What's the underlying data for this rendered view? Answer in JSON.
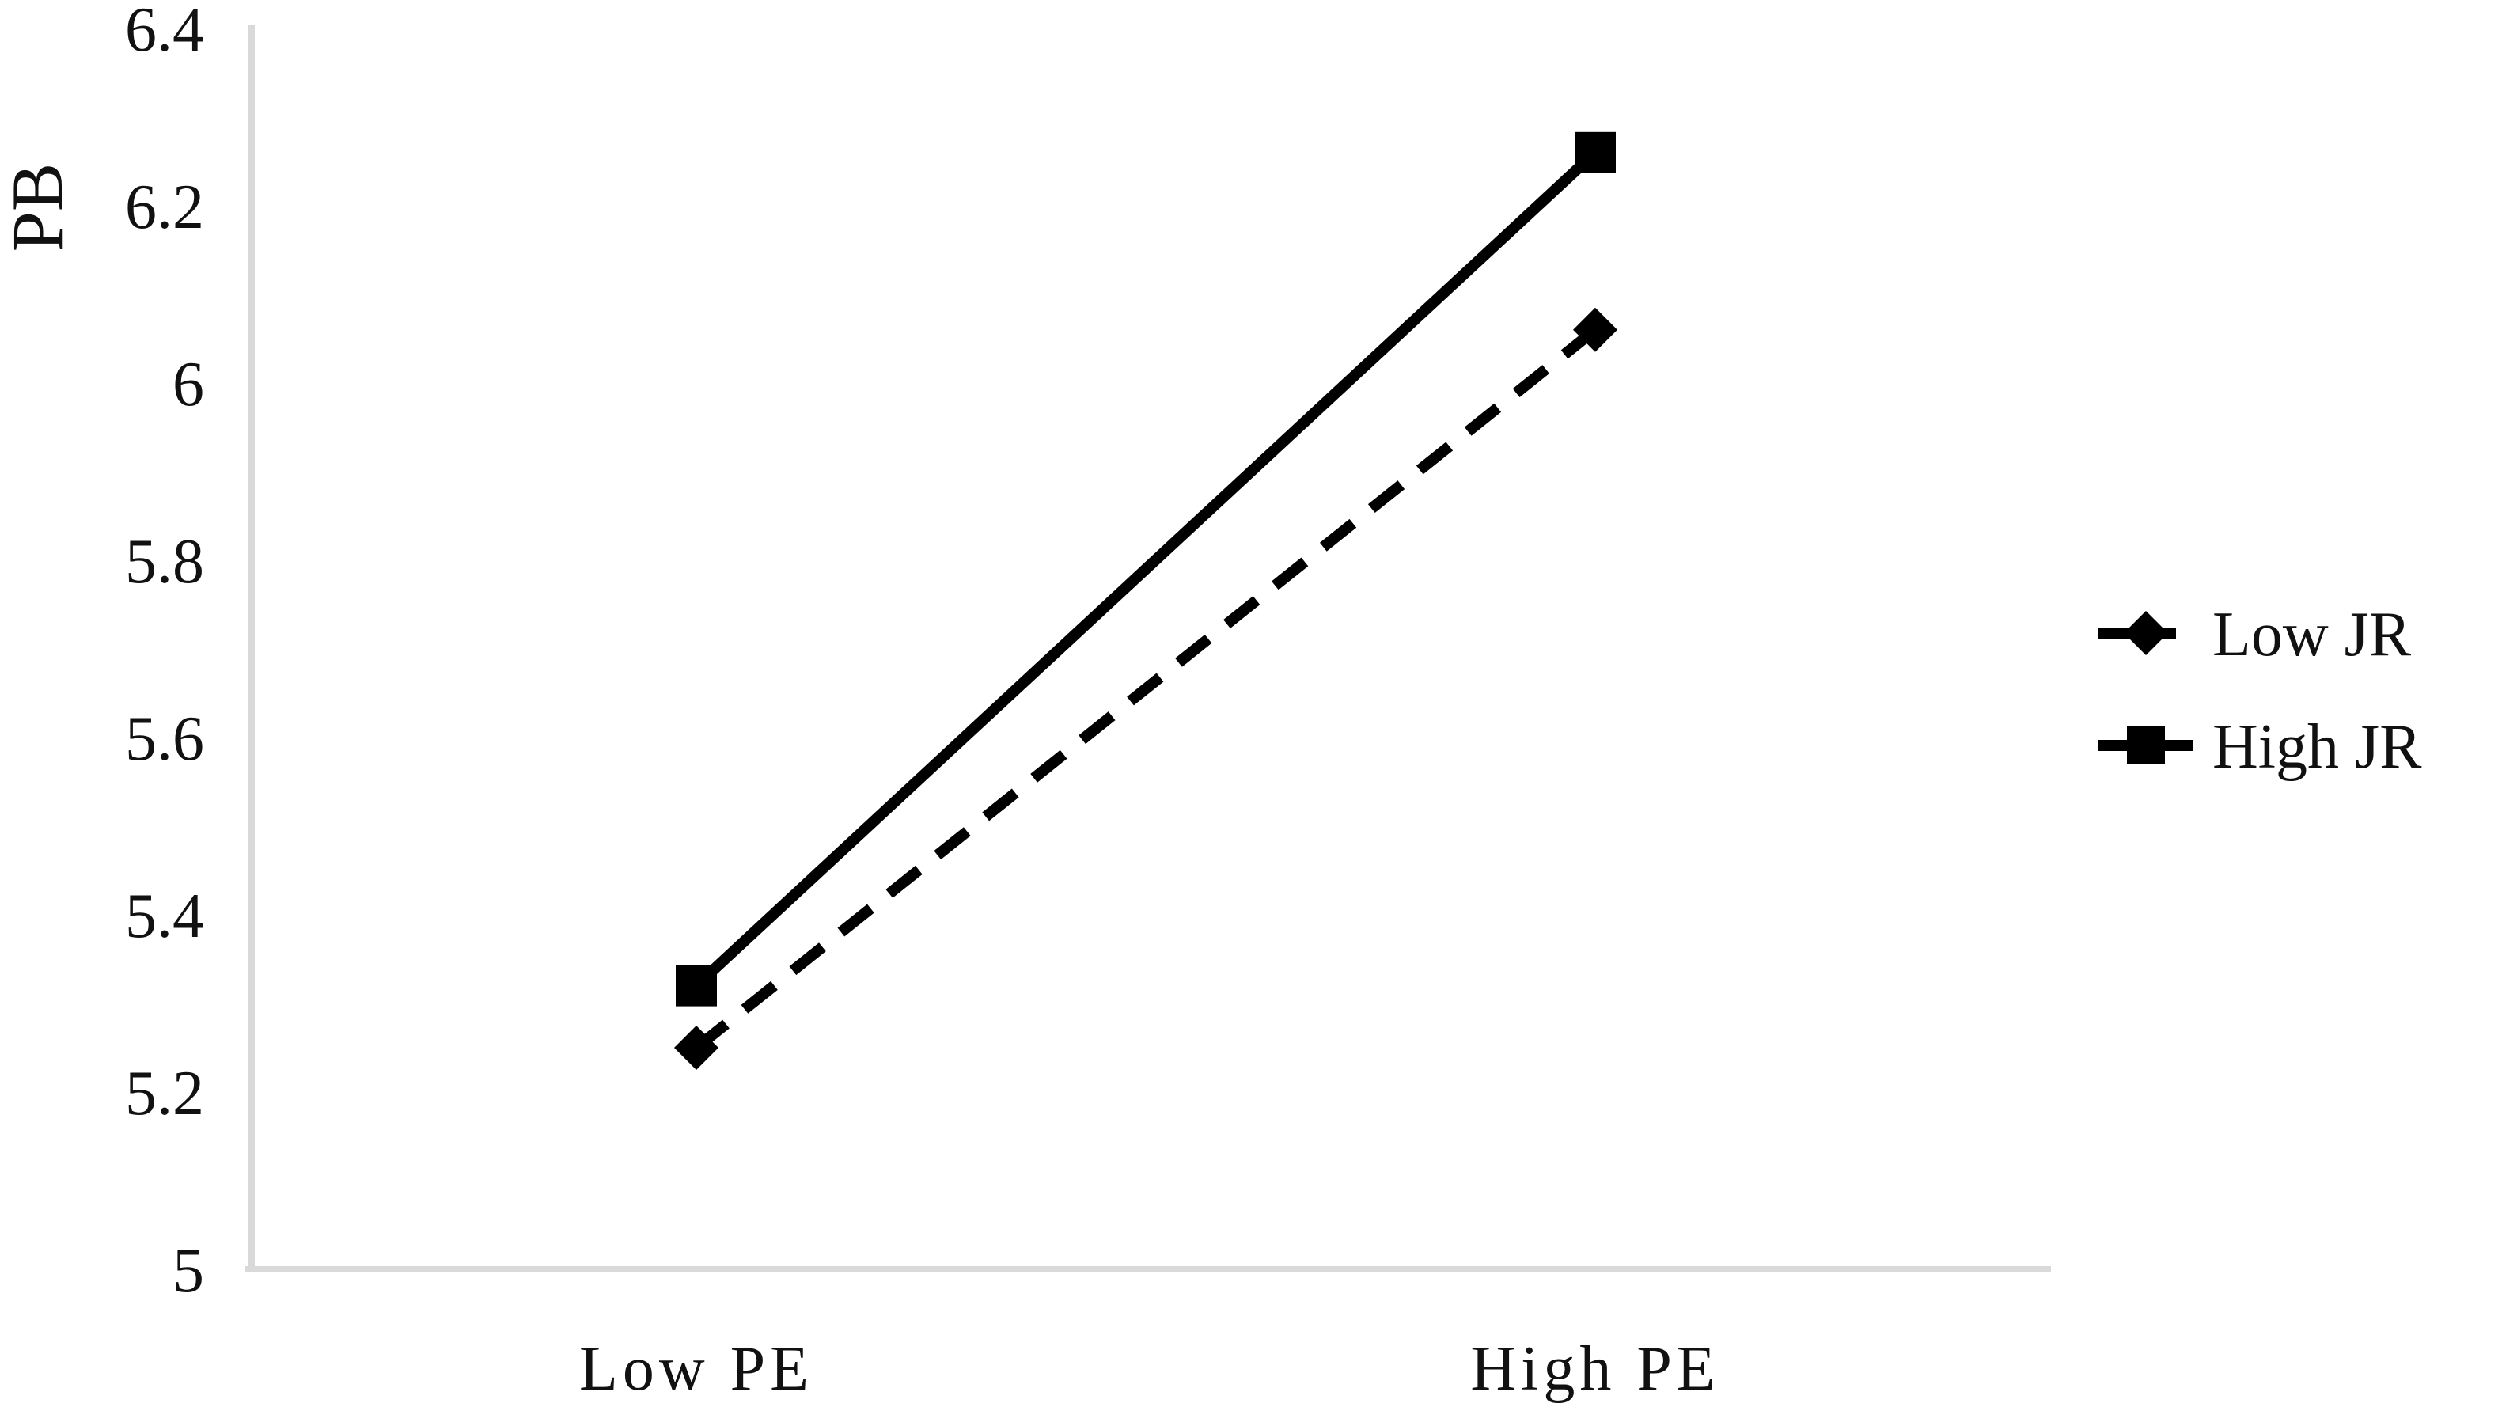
{
  "chart_data": {
    "type": "line",
    "ylabel": "PB",
    "xlabel": "",
    "title": "",
    "categories": [
      "Low PE",
      "High PE"
    ],
    "ylim": [
      5,
      6.4
    ],
    "yticks": [
      "5",
      "5.2",
      "5.4",
      "5.6",
      "5.8",
      "6",
      "6.2",
      "6.4"
    ],
    "grid": false,
    "legend_position": "right",
    "series": [
      {
        "name": "Low JR",
        "values": [
          5.25,
          6.06
        ],
        "line_style": "dashed",
        "marker": "diamond",
        "color": "#000000"
      },
      {
        "name": "High JR",
        "values": [
          5.32,
          6.26
        ],
        "line_style": "solid",
        "marker": "square",
        "color": "#000000"
      }
    ]
  },
  "colors": {
    "axis": "#d9d9d9",
    "series": "#000000"
  }
}
